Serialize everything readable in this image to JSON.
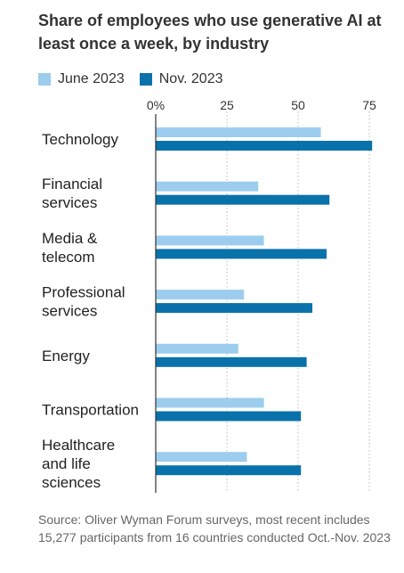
{
  "title": "Share of employees who use generative AI at least once a week, by industry",
  "source": "Source: Oliver Wyman Forum surveys, most recent includes 15,277 participants from 16 countries conducted Oct.-Nov. 2023",
  "colors": {
    "june": "#9ccdee",
    "nov": "#0a72aa",
    "axis": "#333333",
    "grid": "#bbbbbb"
  },
  "chart_data": {
    "type": "bar",
    "orientation": "horizontal",
    "categories": [
      [
        "Technology"
      ],
      [
        "Financial",
        "services"
      ],
      [
        "Media &",
        "telecom"
      ],
      [
        "Professional",
        "services"
      ],
      [
        "Energy"
      ],
      [
        "Transportation"
      ],
      [
        "Healthcare",
        "and life",
        "sciences"
      ]
    ],
    "series": [
      {
        "name": "June 2023",
        "color": "#9ccdee",
        "values": [
          58,
          36,
          38,
          31,
          29,
          38,
          32
        ]
      },
      {
        "name": "Nov. 2023",
        "color": "#0a72aa",
        "values": [
          76,
          61,
          60,
          55,
          53,
          51,
          51
        ]
      }
    ],
    "xticks": [
      0,
      25,
      50,
      75
    ],
    "xtick_labels": [
      "0%",
      "25",
      "50",
      "75"
    ],
    "xlim": [
      0,
      76
    ],
    "grid": true,
    "legend": "top-left"
  }
}
